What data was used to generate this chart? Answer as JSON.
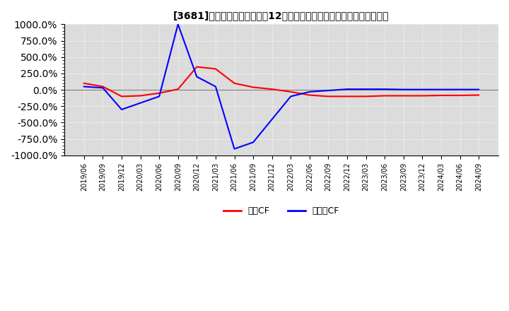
{
  "title": "[3681]　キャッシュフローの12か月移動合計の対前年同期増減率の推移",
  "ylim": [
    -1000,
    1000
  ],
  "yticks": [
    1000,
    750,
    500,
    250,
    0,
    -250,
    -500,
    -750,
    -1000
  ],
  "legend_labels": [
    "営業CF",
    "フリーCF"
  ],
  "line_colors": [
    "#ff0000",
    "#0000ff"
  ],
  "background_color": "#dcdcdc",
  "grid_color": "#ffffff",
  "dates": [
    "2019/06",
    "2019/09",
    "2019/12",
    "2020/03",
    "2020/06",
    "2020/09",
    "2020/12",
    "2021/03",
    "2021/06",
    "2021/09",
    "2021/12",
    "2022/03",
    "2022/06",
    "2022/09",
    "2022/12",
    "2023/03",
    "2023/06",
    "2023/09",
    "2023/12",
    "2024/03",
    "2024/06",
    "2024/09"
  ],
  "operating_cf": [
    100,
    50,
    -100,
    -90,
    -50,
    10,
    350,
    320,
    100,
    40,
    10,
    -30,
    -80,
    -100,
    -100,
    -100,
    -90,
    -90,
    -90,
    -85,
    -85,
    -80
  ],
  "free_cf": [
    50,
    30,
    -300,
    -200,
    -100,
    1000,
    200,
    50,
    -900,
    -800,
    -450,
    -100,
    -30,
    -10,
    10,
    10,
    10,
    5,
    5,
    5,
    5,
    5
  ]
}
